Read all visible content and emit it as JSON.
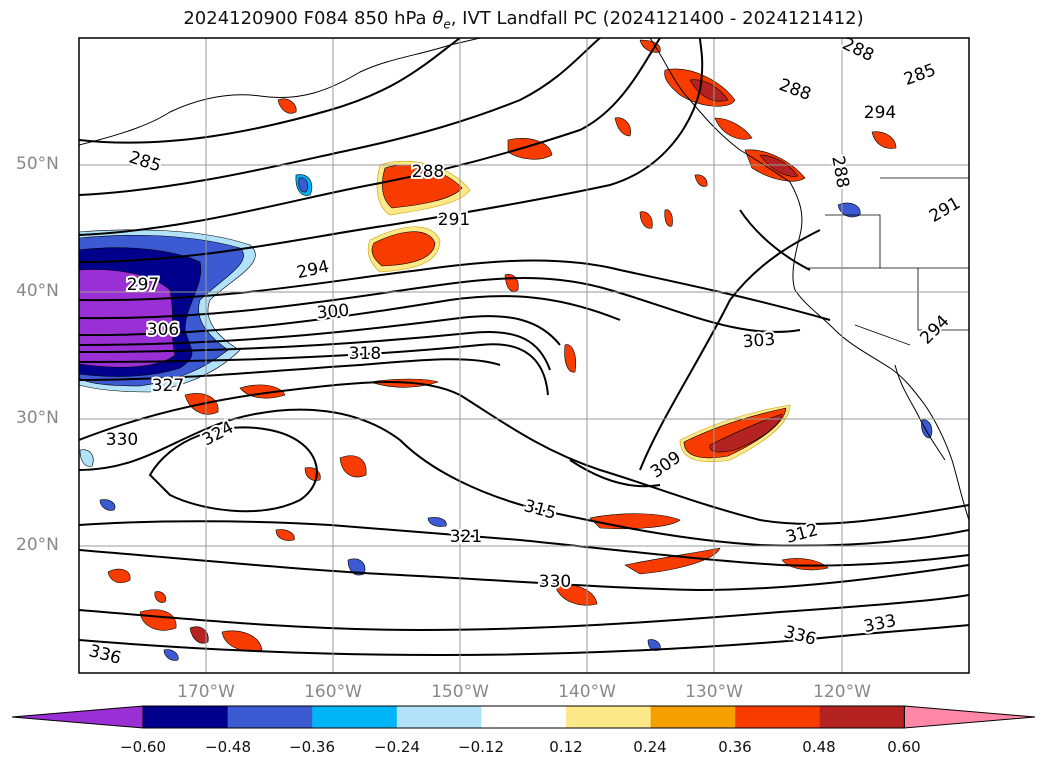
{
  "title": {
    "prefix": "2024120900 F084 850 hPa ",
    "theta": "θ",
    "theta_sub": "e",
    "suffix": ", IVT Landfall PC (2024121400 - 2024121412)"
  },
  "lat_labels": [
    "50°N",
    "40°N",
    "30°N",
    "20°N"
  ],
  "lon_labels": [
    "170°W",
    "160°W",
    "150°W",
    "140°W",
    "130°W",
    "120°W"
  ],
  "contour_labels": [
    "285",
    "288",
    "291",
    "294",
    "297",
    "300",
    "303",
    "306",
    "309",
    "312",
    "315",
    "318",
    "321",
    "324",
    "327",
    "330",
    "333",
    "336"
  ],
  "colorbar": {
    "ticks": [
      "−0.60",
      "−0.48",
      "−0.36",
      "−0.24",
      "−0.12",
      "0.12",
      "0.24",
      "0.36",
      "0.48",
      "0.60"
    ],
    "colors": [
      "#9a2fd6",
      "#00008c",
      "#3c5ad2",
      "#00b4f8",
      "#b2e2fa",
      "#ffffff",
      "#fde98a",
      "#f5a000",
      "#f83c00",
      "#b42222",
      "#ff88a8"
    ]
  }
}
